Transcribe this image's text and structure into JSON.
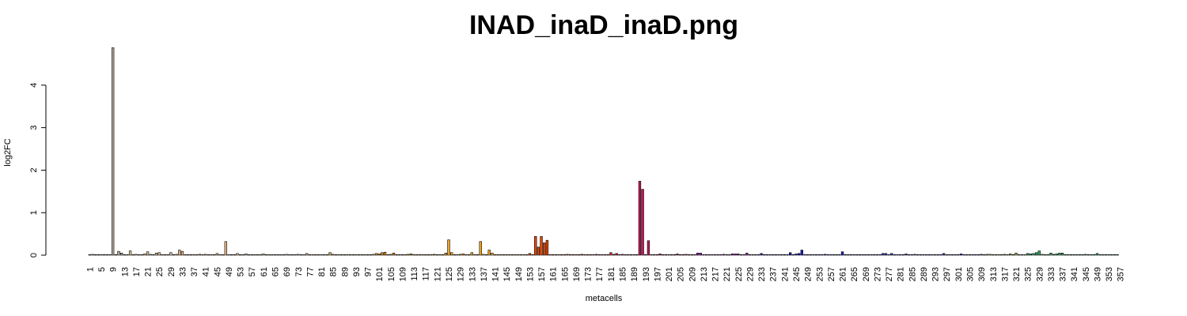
{
  "chart_data": {
    "type": "bar",
    "title": "INAD_inaD_inaD.png",
    "xlabel": "metacells",
    "ylabel": "log2FC",
    "ylim": [
      0,
      4.9
    ],
    "yticks": [
      0,
      1,
      2,
      3,
      4
    ],
    "n_bars": 357,
    "x_tick_labels": [
      "1",
      "5",
      "9",
      "13",
      "17",
      "21",
      "25",
      "29",
      "33",
      "37",
      "41",
      "45",
      "49",
      "53",
      "57",
      "61",
      "65",
      "69",
      "73",
      "77",
      "81",
      "85",
      "89",
      "93",
      "97",
      "101",
      "105",
      "109",
      "113",
      "117",
      "121",
      "125",
      "129",
      "133",
      "137",
      "141",
      "145",
      "149",
      "153",
      "157",
      "161",
      "165",
      "169",
      "173",
      "177",
      "181",
      "185",
      "189",
      "193",
      "197",
      "201",
      "205",
      "209",
      "213",
      "217",
      "221",
      "225",
      "229",
      "233",
      "237",
      "241",
      "245",
      "249",
      "253",
      "257",
      "261",
      "265",
      "269",
      "273",
      "277",
      "281",
      "285",
      "289",
      "293",
      "297",
      "301",
      "305",
      "309",
      "313",
      "317",
      "321",
      "325",
      "329",
      "333",
      "337",
      "341",
      "345",
      "349",
      "353",
      "357"
    ],
    "color_groups": [
      {
        "from": 1,
        "to": 12,
        "color": "#b3a79a"
      },
      {
        "from": 13,
        "to": 30,
        "color": "#d9c39a"
      },
      {
        "from": 31,
        "to": 52,
        "color": "#e8b98a"
      },
      {
        "from": 53,
        "to": 82,
        "color": "#dcc2a6"
      },
      {
        "from": 83,
        "to": 100,
        "color": "#d4a85a"
      },
      {
        "from": 101,
        "to": 121,
        "color": "#e08a20"
      },
      {
        "from": 122,
        "to": 152,
        "color": "#f5a623"
      },
      {
        "from": 153,
        "to": 164,
        "color": "#e84a00"
      },
      {
        "from": 165,
        "to": 182,
        "color": "#d6303a"
      },
      {
        "from": 183,
        "to": 210,
        "color": "#c2185b"
      },
      {
        "from": 211,
        "to": 232,
        "color": "#9c27b0"
      },
      {
        "from": 233,
        "to": 268,
        "color": "#2020c8"
      },
      {
        "from": 269,
        "to": 310,
        "color": "#3a3ad0"
      },
      {
        "from": 311,
        "to": 324,
        "color": "#9aa84a"
      },
      {
        "from": 325,
        "to": 357,
        "color": "#3aaa6a"
      }
    ],
    "values": [
      0.0,
      0.02,
      0.0,
      0.0,
      0.01,
      0.0,
      0.0,
      0.0,
      4.88,
      0.01,
      0.09,
      0.05,
      0.0,
      0.0,
      0.1,
      0.0,
      0.02,
      0.0,
      0.0,
      0.03,
      0.08,
      0.02,
      0.01,
      0.05,
      0.06,
      0.0,
      0.01,
      0.01,
      0.06,
      0.0,
      0.02,
      0.12,
      0.09,
      0.0,
      0.0,
      0.01,
      0.0,
      0.0,
      0.02,
      0.01,
      0.02,
      0.0,
      0.0,
      0.01,
      0.04,
      0.01,
      0.0,
      0.32,
      0.0,
      0.0,
      0.0,
      0.04,
      0.0,
      0.0,
      0.03,
      0.0,
      0.0,
      0.0,
      0.01,
      0.0,
      0.03,
      0.0,
      0.0,
      0.0,
      0.0,
      0.01,
      0.0,
      0.0,
      0.02,
      0.0,
      0.0,
      0.0,
      0.02,
      0.0,
      0.0,
      0.04,
      0.01,
      0.0,
      0.0,
      0.0,
      0.0,
      0.0,
      0.0,
      0.06,
      0.02,
      0.0,
      0.0,
      0.01,
      0.0,
      0.0,
      0.0,
      0.0,
      0.0,
      0.01,
      0.0,
      0.0,
      0.0,
      0.0,
      0.02,
      0.04,
      0.03,
      0.06,
      0.07,
      0.0,
      0.02,
      0.05,
      0.0,
      0.0,
      0.0,
      0.01,
      0.02,
      0.03,
      0.0,
      0.0,
      0.0,
      0.0,
      0.0,
      0.0,
      0.0,
      0.02,
      0.0,
      0.0,
      0.0,
      0.05,
      0.36,
      0.06,
      0.01,
      0.0,
      0.02,
      0.03,
      0.0,
      0.0,
      0.06,
      0.0,
      0.0,
      0.32,
      0.02,
      0.0,
      0.12,
      0.05,
      0.0,
      0.0,
      0.0,
      0.0,
      0.0,
      0.0,
      0.0,
      0.0,
      0.0,
      0.0,
      0.0,
      0.01,
      0.04,
      0.0,
      0.44,
      0.19,
      0.44,
      0.29,
      0.35,
      0.0,
      0.0,
      0.0,
      0.0,
      0.0,
      0.01,
      0.02,
      0.0,
      0.0,
      0.0,
      0.0,
      0.02,
      0.0,
      0.0,
      0.0,
      0.0,
      0.02,
      0.01,
      0.0,
      0.0,
      0.01,
      0.06,
      0.02,
      0.04,
      0.0,
      0.02,
      0.0,
      0.0,
      0.0,
      0.0,
      0.0,
      1.74,
      1.55,
      0.0,
      0.34,
      0.0,
      0.0,
      0.0,
      0.03,
      0.0,
      0.0,
      0.01,
      0.0,
      0.0,
      0.03,
      0.0,
      0.0,
      0.02,
      0.0,
      0.0,
      0.0,
      0.05,
      0.05,
      0.0,
      0.0,
      0.01,
      0.0,
      0.0,
      0.0,
      0.0,
      0.02,
      0.0,
      0.0,
      0.03,
      0.03,
      0.03,
      0.0,
      0.0,
      0.05,
      0.0,
      0.0,
      0.0,
      0.0,
      0.04,
      0.0,
      0.01,
      0.0,
      0.0,
      0.0,
      0.0,
      0.0,
      0.0,
      0.0,
      0.06,
      0.0,
      0.03,
      0.04,
      0.12,
      0.0,
      0.0,
      0.0,
      0.0,
      0.0,
      0.0,
      0.0,
      0.02,
      0.0,
      0.0,
      0.0,
      0.0,
      0.0,
      0.08,
      0.0,
      0.0,
      0.0,
      0.0,
      0.0,
      0.01,
      0.0,
      0.0,
      0.0,
      0.0,
      0.0,
      0.0,
      0.0,
      0.04,
      0.04,
      0.0,
      0.04,
      0.0,
      0.0,
      0.0,
      0.0,
      0.03,
      0.0,
      0.0,
      0.02,
      0.0,
      0.0,
      0.0,
      0.0,
      0.0,
      0.0,
      0.0,
      0.0,
      0.0,
      0.04,
      0.0,
      0.0,
      0.0,
      0.0,
      0.0,
      0.03,
      0.0,
      0.0,
      0.0,
      0.0,
      0.0,
      0.0,
      0.02,
      0.0,
      0.02,
      0.02,
      0.01,
      0.0,
      0.0,
      0.0,
      0.02,
      0.0,
      0.03,
      0.0,
      0.05,
      0.0,
      0.0,
      0.0,
      0.04,
      0.03,
      0.04,
      0.06,
      0.1,
      0.02,
      0.0,
      0.0,
      0.05,
      0.02,
      0.03,
      0.05,
      0.05,
      0.0,
      0.0,
      0.0,
      0.0,
      0.0,
      0.0,
      0.0,
      0.02,
      0.0,
      0.0,
      0.0,
      0.04,
      0.0,
      0.0,
      0.0,
      0.0,
      0.0,
      0.0,
      0.0
    ]
  }
}
